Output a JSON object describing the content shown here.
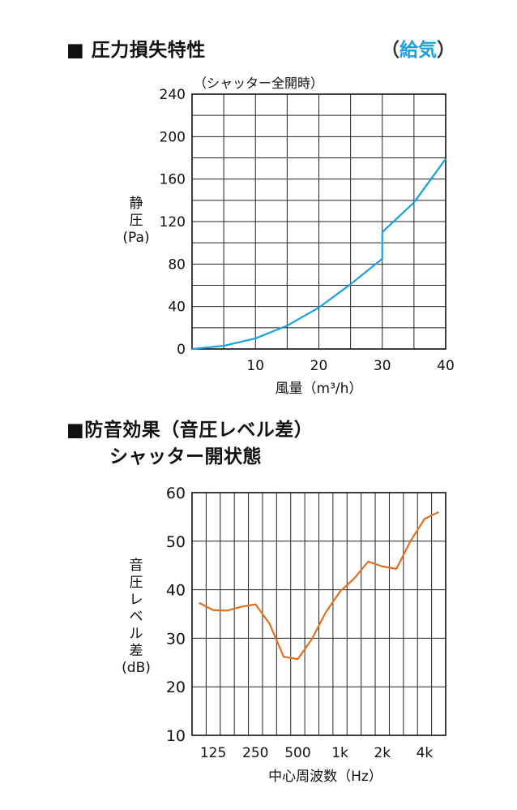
{
  "sections": {
    "pressure": {
      "heading": "■ 圧力損失特性",
      "tag_open": "（",
      "tag_text": "給気",
      "tag_close": "）"
    },
    "sound": {
      "heading": "■防音効果（音圧レベル差）",
      "subheading": "シャッター開状態"
    }
  },
  "chart_data": [
    {
      "type": "line",
      "annotation": "（シャッター全開時）",
      "xlabel": "風量（m³/h）",
      "ylabel_lines": [
        "静",
        "圧",
        "(Pa)"
      ],
      "xlim": [
        0,
        40
      ],
      "ylim": [
        0,
        240
      ],
      "x_ticks": [
        10,
        20,
        30,
        40
      ],
      "y_ticks": [
        0,
        40,
        80,
        120,
        160,
        200,
        240
      ],
      "grid": true,
      "color": "#1aa0dc",
      "series": [
        {
          "x": [
            0,
            5,
            10,
            15,
            20,
            25,
            30,
            30,
            35,
            40
          ],
          "y": [
            0,
            3,
            10,
            22,
            39,
            61,
            85,
            110,
            138,
            179
          ]
        }
      ]
    },
    {
      "type": "line",
      "xlabel": "中心周波数（Hz）",
      "ylabel_lines": [
        "音",
        "圧",
        "レ",
        "ベ",
        "ル",
        "差",
        "(dB)"
      ],
      "ylim": [
        10,
        60
      ],
      "y_ticks": [
        10,
        20,
        30,
        40,
        50,
        60
      ],
      "x_tick_labels": [
        "125",
        "250",
        "500",
        "1k",
        "2k",
        "4k"
      ],
      "grid": true,
      "color": "#e07020",
      "series": [
        {
          "x": [
            "100",
            "125",
            "160",
            "200",
            "250",
            "315",
            "400",
            "500",
            "630",
            "800",
            "1k",
            "1.25k",
            "1.6k",
            "2k",
            "2.5k",
            "3.15k",
            "4k",
            "5k"
          ],
          "y": [
            37.3,
            35.8,
            35.7,
            36.5,
            37.0,
            33.0,
            26.2,
            25.7,
            29.8,
            35.4,
            39.6,
            42.3,
            45.8,
            44.8,
            44.3,
            50.0,
            54.6,
            56.0
          ]
        }
      ]
    }
  ]
}
